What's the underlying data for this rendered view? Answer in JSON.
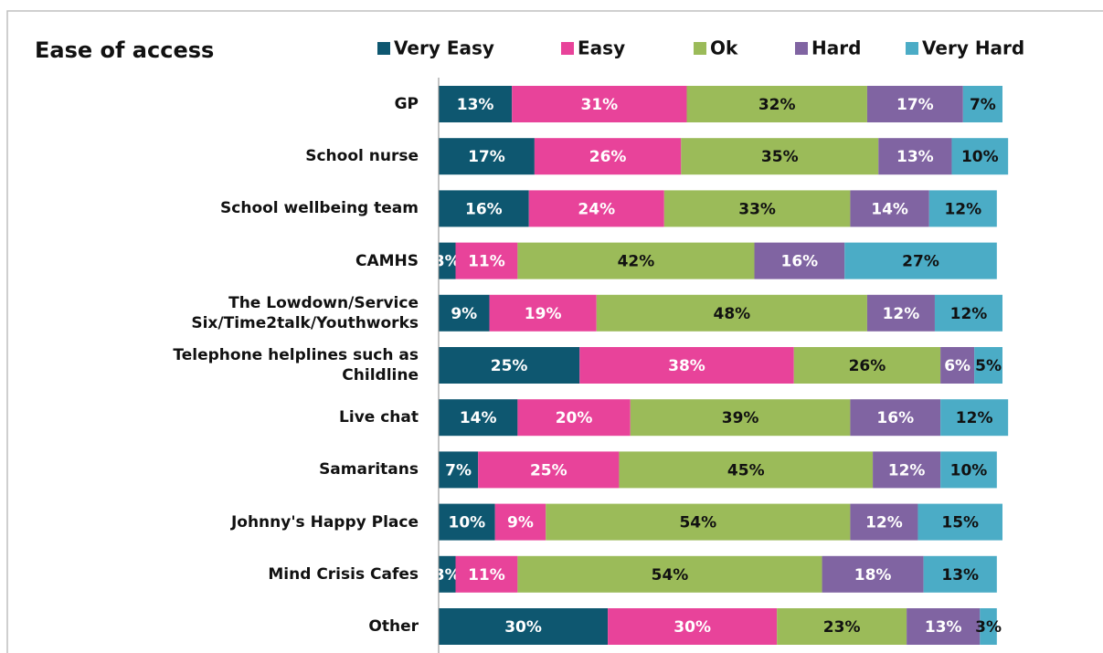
{
  "chart_data": {
    "type": "stacked_barh",
    "title": "Ease of access",
    "categories": [
      "GP",
      "School nurse",
      "School wellbeing team",
      "CAMHS",
      "The Lowdown/Service Six/Time2talk/Youthworks",
      "Telephone helplines such as Childline",
      "Live chat",
      "Samaritans",
      "Johnny's Happy Place",
      "Mind Crisis Cafes",
      "Other"
    ],
    "xlim": [
      0,
      100
    ],
    "legend": "top",
    "series": [
      {
        "name": "Very Easy",
        "color": "#0e5770",
        "label_color": "#ffffff",
        "values": [
          13,
          17,
          16,
          3,
          9,
          25,
          14,
          7,
          10,
          3,
          30
        ],
        "value_labels": [
          "13%",
          "17%",
          "16%",
          "3%",
          "9%",
          "25%",
          "14%",
          "7%",
          "10%",
          "3%",
          "30%"
        ]
      },
      {
        "name": "Easy",
        "color": "#e8439a",
        "label_color": "#ffffff",
        "values": [
          31,
          26,
          24,
          11,
          19,
          38,
          20,
          25,
          9,
          11,
          30
        ],
        "value_labels": [
          "31%",
          "26%",
          "24%",
          "11%",
          "19%",
          "38%",
          "20%",
          "25%",
          "9%",
          "11%",
          "30%"
        ]
      },
      {
        "name": "Ok",
        "color": "#9bbb59",
        "label_color": "#111111",
        "values": [
          32,
          35,
          33,
          42,
          48,
          26,
          39,
          45,
          54,
          54,
          23
        ],
        "value_labels": [
          "32%",
          "35%",
          "33%",
          "42%",
          "48%",
          "26%",
          "39%",
          "45%",
          "54%",
          "54%",
          "23%"
        ]
      },
      {
        "name": "Hard",
        "color": "#8064a2",
        "label_color": "#ffffff",
        "values": [
          17,
          13,
          14,
          16,
          12,
          6,
          16,
          12,
          12,
          18,
          13
        ],
        "value_labels": [
          "17%",
          "13%",
          "14%",
          "16%",
          "12%",
          "6%",
          "16%",
          "12%",
          "12%",
          "18%",
          "13%"
        ]
      },
      {
        "name": "Very Hard",
        "color": "#4bacc6",
        "label_color": "#111111",
        "values": [
          7,
          10,
          12,
          27,
          12,
          5,
          12,
          10,
          15,
          13,
          3
        ],
        "value_labels": [
          "7%",
          "10%",
          "12%",
          "27%",
          "12%",
          "5%",
          "12%",
          "10%",
          "15%",
          "13%",
          "3%"
        ]
      }
    ]
  }
}
